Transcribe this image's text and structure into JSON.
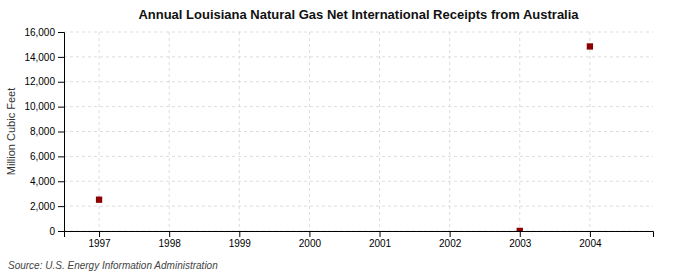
{
  "chart_data": {
    "type": "scatter",
    "title": "Annual Louisiana Natural Gas Net International Receipts from Australia",
    "ylabel": "Million Cubic Feet",
    "annotations": [
      "Source: U.S. Energy Information Administration"
    ],
    "x": [
      1997,
      2003,
      2004
    ],
    "values": [
      2517,
      6,
      14837
    ],
    "color": "#8b0000",
    "marker": "square",
    "xlim": [
      1996.5,
      2004.9
    ],
    "ylim": [
      0,
      16000
    ],
    "xticks": [
      1997,
      1998,
      1999,
      2000,
      2001,
      2002,
      2003,
      2004
    ],
    "yticks": [
      0,
      {
        "value": 2000,
        "label": "2,000"
      },
      {
        "value": 4000,
        "label": "4,000"
      },
      {
        "value": 6000,
        "label": "6,000"
      },
      {
        "value": 8000,
        "label": "8,000"
      },
      {
        "value": 10000,
        "label": "10,000"
      },
      {
        "value": 12000,
        "label": "12,000"
      },
      {
        "value": 14000,
        "label": "14,000"
      },
      {
        "value": 16000,
        "label": "16,000"
      }
    ],
    "grid": true
  }
}
